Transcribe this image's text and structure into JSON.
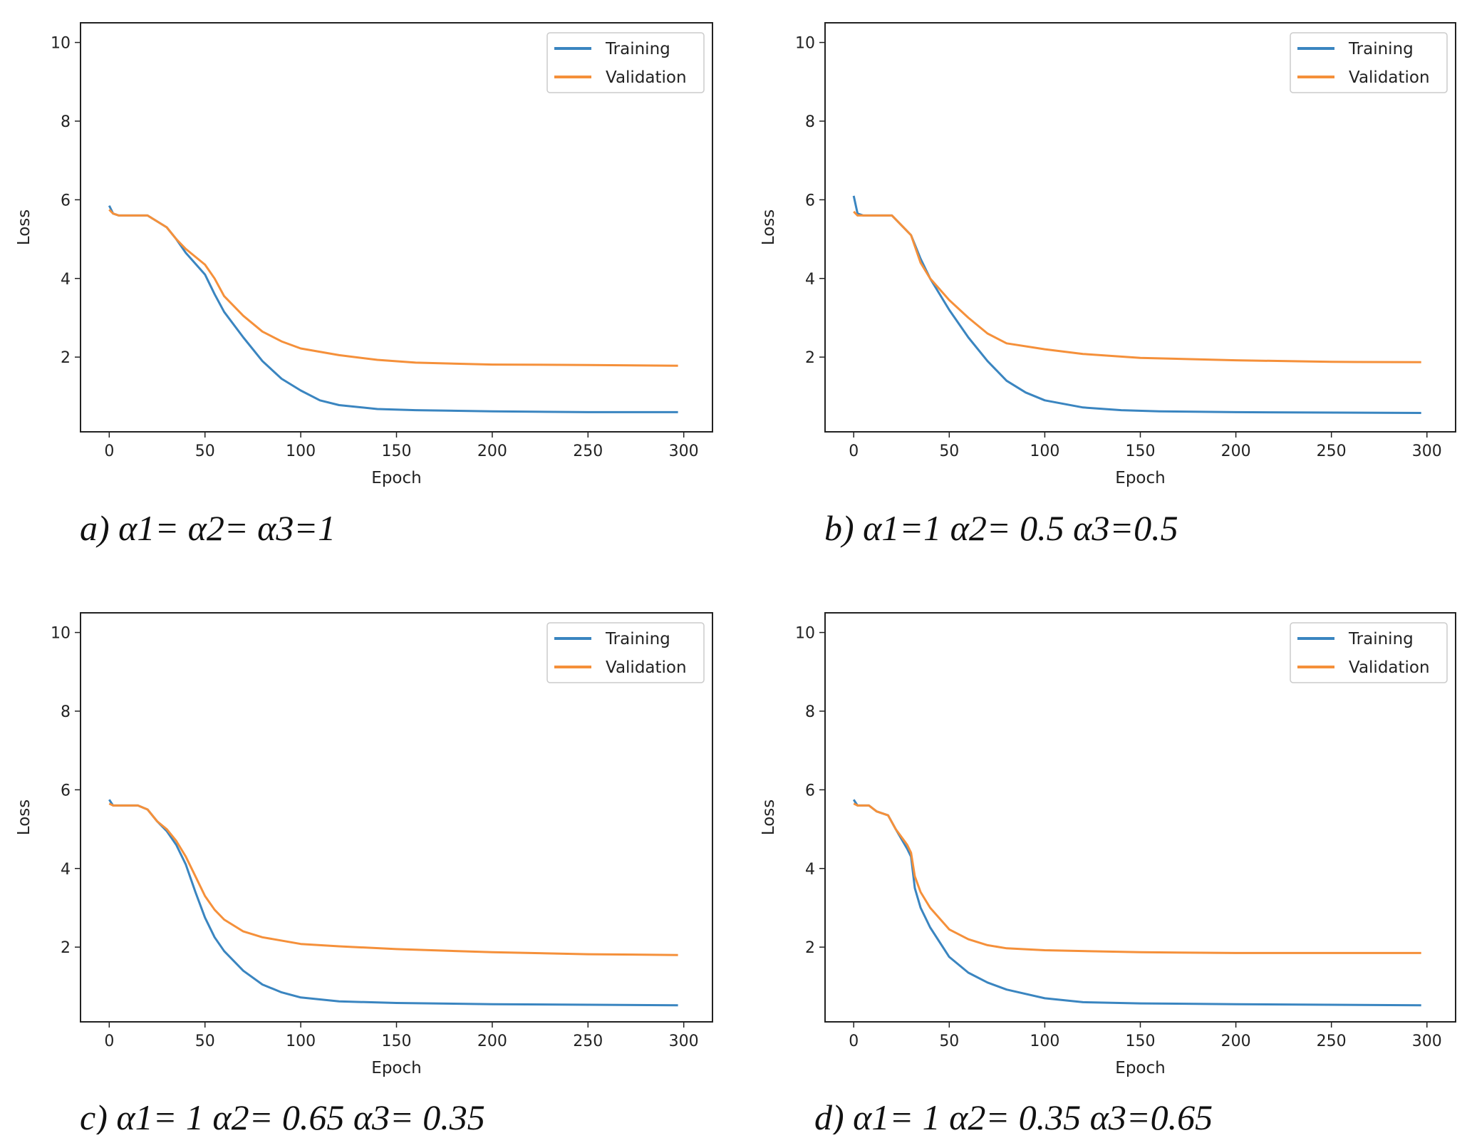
{
  "colors": {
    "training": "#3a85c0",
    "validation": "#f5903a",
    "axis": "#222222"
  },
  "chart_data": [
    {
      "type": "line",
      "caption": "a) α1= α2= α3=1",
      "xlabel": "Epoch",
      "ylabel": "Loss",
      "xlim": [
        -15,
        315
      ],
      "ylim": [
        0.1,
        10.5
      ],
      "xticks": [
        0,
        50,
        100,
        150,
        200,
        250,
        300
      ],
      "yticks": [
        2,
        4,
        6,
        8,
        10
      ],
      "grid": false,
      "legend": "top-right",
      "series": [
        {
          "name": "Training",
          "x": [
            0,
            2,
            5,
            20,
            30,
            35,
            40,
            50,
            55,
            60,
            70,
            80,
            90,
            100,
            110,
            120,
            140,
            160,
            200,
            250,
            297
          ],
          "y": [
            5.85,
            5.65,
            5.6,
            5.6,
            5.3,
            5.0,
            4.65,
            4.1,
            3.6,
            3.15,
            2.5,
            1.9,
            1.45,
            1.15,
            0.9,
            0.78,
            0.68,
            0.65,
            0.62,
            0.6,
            0.6
          ]
        },
        {
          "name": "Validation",
          "x": [
            0,
            2,
            5,
            20,
            30,
            35,
            40,
            50,
            55,
            60,
            70,
            80,
            90,
            100,
            120,
            140,
            160,
            200,
            250,
            297
          ],
          "y": [
            5.75,
            5.65,
            5.6,
            5.6,
            5.3,
            5.0,
            4.75,
            4.35,
            4.0,
            3.55,
            3.05,
            2.65,
            2.4,
            2.22,
            2.05,
            1.93,
            1.86,
            1.81,
            1.8,
            1.78
          ]
        }
      ]
    },
    {
      "type": "line",
      "caption": "b) α1=1 α2= 0.5 α3=0.5",
      "xlabel": "Epoch",
      "ylabel": "Loss",
      "xlim": [
        -15,
        315
      ],
      "ylim": [
        0.1,
        10.5
      ],
      "xticks": [
        0,
        50,
        100,
        150,
        200,
        250,
        300
      ],
      "yticks": [
        2,
        4,
        6,
        8,
        10
      ],
      "grid": false,
      "legend": "top-right",
      "series": [
        {
          "name": "Training",
          "x": [
            0,
            2,
            5,
            20,
            25,
            30,
            35,
            40,
            50,
            60,
            70,
            80,
            90,
            100,
            120,
            140,
            160,
            200,
            297
          ],
          "y": [
            6.1,
            5.65,
            5.6,
            5.6,
            5.35,
            5.1,
            4.5,
            4.0,
            3.2,
            2.5,
            1.9,
            1.4,
            1.1,
            0.9,
            0.72,
            0.65,
            0.62,
            0.6,
            0.58
          ]
        },
        {
          "name": "Validation",
          "x": [
            0,
            2,
            20,
            25,
            30,
            35,
            40,
            50,
            60,
            70,
            80,
            100,
            120,
            150,
            200,
            250,
            297
          ],
          "y": [
            5.7,
            5.6,
            5.6,
            5.35,
            5.1,
            4.4,
            4.0,
            3.45,
            3.0,
            2.6,
            2.35,
            2.2,
            2.08,
            1.98,
            1.92,
            1.88,
            1.87
          ]
        }
      ]
    },
    {
      "type": "line",
      "caption": "c) α1= 1 α2= 0.65 α3= 0.35",
      "xlabel": "Epoch",
      "ylabel": "Loss",
      "xlim": [
        -15,
        315
      ],
      "ylim": [
        0.1,
        10.5
      ],
      "xticks": [
        0,
        50,
        100,
        150,
        200,
        250,
        300
      ],
      "yticks": [
        2,
        4,
        6,
        8,
        10
      ],
      "grid": false,
      "legend": "top-right",
      "series": [
        {
          "name": "Training",
          "x": [
            0,
            2,
            15,
            20,
            25,
            30,
            35,
            40,
            45,
            50,
            55,
            60,
            70,
            80,
            90,
            100,
            120,
            150,
            200,
            297
          ],
          "y": [
            5.75,
            5.6,
            5.6,
            5.5,
            5.2,
            4.95,
            4.6,
            4.1,
            3.4,
            2.75,
            2.25,
            1.9,
            1.4,
            1.05,
            0.85,
            0.72,
            0.62,
            0.58,
            0.55,
            0.52
          ]
        },
        {
          "name": "Validation",
          "x": [
            0,
            2,
            15,
            20,
            25,
            30,
            35,
            40,
            45,
            50,
            55,
            60,
            70,
            80,
            100,
            120,
            150,
            200,
            250,
            297
          ],
          "y": [
            5.65,
            5.6,
            5.6,
            5.5,
            5.2,
            5.0,
            4.7,
            4.3,
            3.8,
            3.3,
            2.95,
            2.7,
            2.4,
            2.25,
            2.08,
            2.02,
            1.95,
            1.87,
            1.82,
            1.8
          ]
        }
      ]
    },
    {
      "type": "line",
      "caption": "d) α1= 1 α2= 0.35 α3=0.65",
      "xlabel": "Epoch",
      "ylabel": "Loss",
      "xlim": [
        -15,
        315
      ],
      "ylim": [
        0.1,
        10.5
      ],
      "xticks": [
        0,
        50,
        100,
        150,
        200,
        250,
        300
      ],
      "yticks": [
        2,
        4,
        6,
        8,
        10
      ],
      "grid": false,
      "legend": "top-right",
      "series": [
        {
          "name": "Training",
          "x": [
            0,
            2,
            8,
            12,
            18,
            22,
            28,
            30,
            32,
            35,
            40,
            50,
            60,
            70,
            80,
            100,
            120,
            150,
            200,
            297
          ],
          "y": [
            5.75,
            5.6,
            5.6,
            5.45,
            5.35,
            5.0,
            4.5,
            4.3,
            3.5,
            3.0,
            2.5,
            1.75,
            1.35,
            1.1,
            0.92,
            0.7,
            0.6,
            0.57,
            0.55,
            0.52
          ]
        },
        {
          "name": "Validation",
          "x": [
            0,
            2,
            8,
            12,
            18,
            22,
            28,
            30,
            32,
            35,
            40,
            50,
            60,
            70,
            80,
            100,
            150,
            200,
            297
          ],
          "y": [
            5.65,
            5.6,
            5.6,
            5.45,
            5.35,
            5.0,
            4.6,
            4.4,
            3.8,
            3.4,
            3.0,
            2.45,
            2.2,
            2.05,
            1.97,
            1.92,
            1.87,
            1.85,
            1.85
          ]
        }
      ]
    }
  ]
}
